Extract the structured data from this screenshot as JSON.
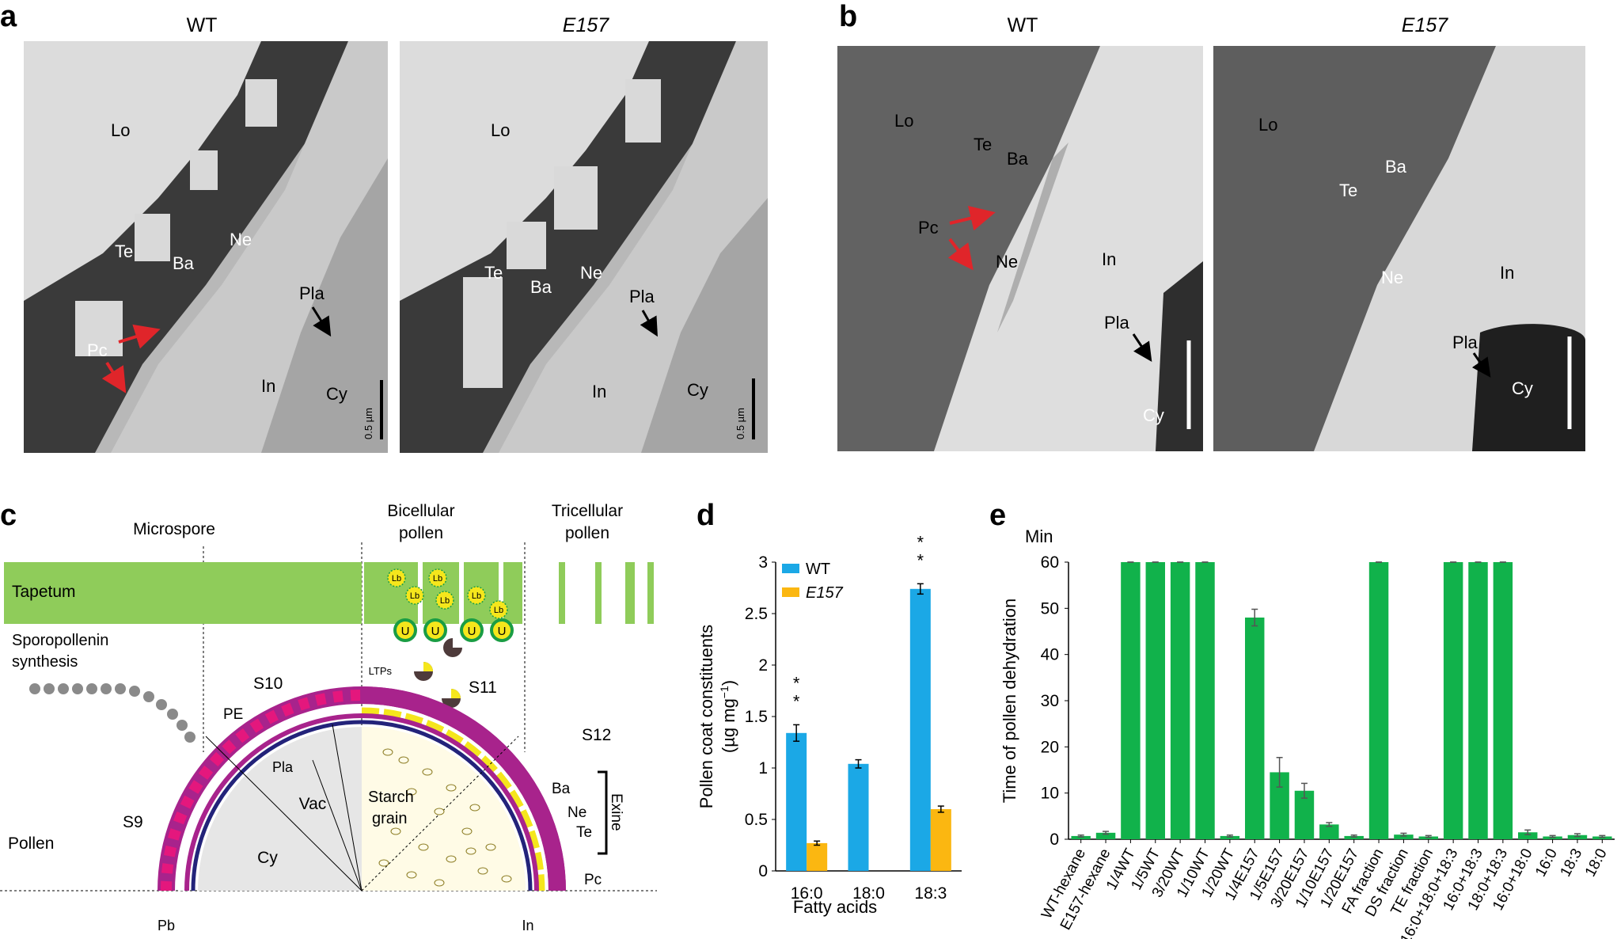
{
  "panel_labels": [
    "a",
    "b",
    "c",
    "d",
    "e"
  ],
  "panel_a": {
    "titles": [
      "WT",
      "E157"
    ],
    "wt_labels": {
      "lo": "Lo",
      "te": "Te",
      "ba": "Ba",
      "ne": "Ne",
      "pc": "Pc",
      "pla": "Pla",
      "in": "In",
      "cy": "Cy"
    },
    "e157_labels": {
      "lo": "Lo",
      "te": "Te",
      "ba": "Ba",
      "ne": "Ne",
      "pla": "Pla",
      "in": "In",
      "cy": "Cy"
    },
    "scale_bar": "0.5 µm"
  },
  "panel_b": {
    "titles": [
      "WT",
      "E157"
    ],
    "wt_labels": {
      "lo": "Lo",
      "te": "Te",
      "ba": "Ba",
      "pc": "Pc",
      "ne": "Ne",
      "in": "In",
      "pla": "Pla",
      "cy": "Cy"
    },
    "e157_labels": {
      "lo": "Lo",
      "ba": "Ba",
      "te": "Te",
      "ne": "Ne",
      "in": "In",
      "pla": "Pla",
      "cy": "Cy"
    }
  },
  "panel_c": {
    "stage_headers": [
      "Microspore",
      "Bicellular\npollen",
      "Tricellular\npollen"
    ],
    "tapetum": "Tapetum",
    "sporopollenin": "Sporopollenin\nsynthesis",
    "stages": [
      "S9",
      "S10",
      "S11",
      "S12"
    ],
    "lb": "Lb",
    "u": "U",
    "ltps": "LTPs",
    "pe": "PE",
    "pla": "Pla",
    "vac": "Vac",
    "cy": "Cy",
    "starch": "Starch\ngrain",
    "pollen": "Pollen",
    "pb": "Pb",
    "in": "In",
    "ba": "Ba",
    "ne": "Ne",
    "te": "Te",
    "pc": "Pc",
    "exine": "Exine"
  },
  "chart_data": [
    {
      "type": "bar",
      "panel": "d",
      "ylabel": "Pollen coat constituents\n(µg mg⁻¹)",
      "xlabel": "Fatty acids",
      "categories": [
        "16:0",
        "18:0",
        "18:3"
      ],
      "series": [
        {
          "name": "WT",
          "color": "#1ba8e6",
          "values": [
            1.34,
            1.04,
            2.74
          ],
          "errors": [
            0.08,
            0.04,
            0.05
          ]
        },
        {
          "name": "E157",
          "color": "#fbb711",
          "values": [
            0.27,
            0.0,
            0.6
          ],
          "errors": [
            0.02,
            0.0,
            0.03
          ]
        }
      ],
      "ylim": [
        0,
        3
      ],
      "yticks": [
        "0",
        "0.5",
        "1",
        "1.5",
        "2",
        "2.5",
        "3"
      ],
      "significance": [
        "**",
        "",
        "**"
      ]
    },
    {
      "type": "bar",
      "panel": "e",
      "unit_label": "Min",
      "ylabel": "Time of pollen dehydration",
      "categories": [
        "WT-hexane",
        "E157-hexane",
        "1/4WT",
        "1/5WT",
        "3/20WT",
        "1/10WT",
        "1/20WT",
        "1/4E157",
        "1/5E157",
        "3/20E157",
        "1/10E157",
        "1/20E157",
        "FA fraction",
        "DS fraction",
        "TE fraction",
        "16:0+18:0+18:3",
        "16:0+18:3",
        "18:0+18:3",
        "16:0+18:0",
        "16:0",
        "18:3",
        "18:0"
      ],
      "values": [
        0.7,
        1.4,
        60,
        60,
        60,
        60,
        0.7,
        48,
        14.5,
        10.5,
        3.2,
        0.7,
        60,
        1.0,
        0.6,
        60,
        60,
        60,
        1.5,
        0.6,
        0.9,
        0.6
      ],
      "errors": [
        0.2,
        0.3,
        0,
        0,
        0,
        0,
        0.2,
        1.8,
        3.2,
        1.6,
        0.4,
        0.2,
        0,
        0.3,
        0.2,
        0,
        0,
        0,
        0.5,
        0.2,
        0.3,
        0.2
      ],
      "color": "#11b24b",
      "ylim": [
        0,
        60
      ],
      "yticks": [
        "0",
        "10",
        "20",
        "30",
        "40",
        "50",
        "60"
      ]
    }
  ]
}
